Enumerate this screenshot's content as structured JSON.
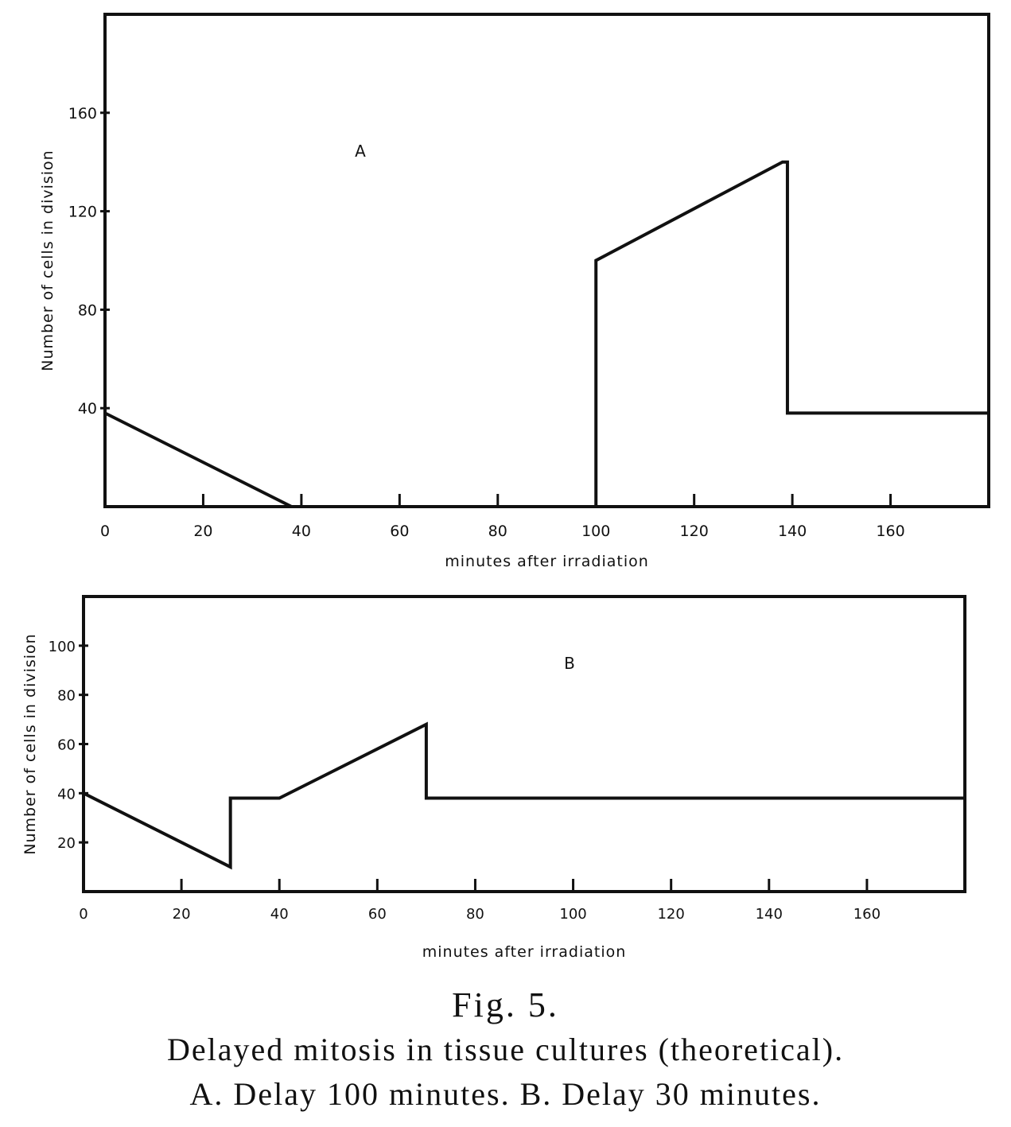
{
  "chart_data": [
    {
      "type": "line",
      "title": "",
      "panel_label": "A",
      "xlabel": "minutes after irradiation",
      "ylabel": "Number of cells in division",
      "xlim": [
        0,
        180
      ],
      "ylim": [
        0,
        200
      ],
      "x_ticks": [
        0,
        20,
        40,
        60,
        80,
        100,
        120,
        140,
        160
      ],
      "y_ticks": [
        40,
        80,
        120,
        160
      ],
      "grid": false,
      "series": [
        {
          "x": [
            0,
            38,
            100,
            100,
            138,
            139,
            139,
            180
          ],
          "y": [
            38,
            0,
            0,
            100,
            140,
            140,
            38,
            38
          ]
        }
      ]
    },
    {
      "type": "line",
      "title": "",
      "panel_label": "B",
      "xlabel": "minutes after irradiation",
      "ylabel": "Number of cells in division",
      "xlim": [
        0,
        180
      ],
      "ylim": [
        0,
        120
      ],
      "x_ticks": [
        0,
        20,
        40,
        60,
        80,
        100,
        120,
        140,
        160
      ],
      "y_ticks": [
        20,
        40,
        60,
        80,
        100
      ],
      "grid": false,
      "series": [
        {
          "x": [
            0,
            30,
            30,
            40,
            70,
            70,
            180
          ],
          "y": [
            40,
            10,
            38,
            38,
            68,
            38,
            38
          ]
        }
      ]
    }
  ],
  "caption": {
    "figure_label": "Fig. 5.",
    "line1": "Delayed mitosis in tissue cultures (theoretical).",
    "line2": "A. Delay 100 minutes. B. Delay 30 minutes."
  }
}
